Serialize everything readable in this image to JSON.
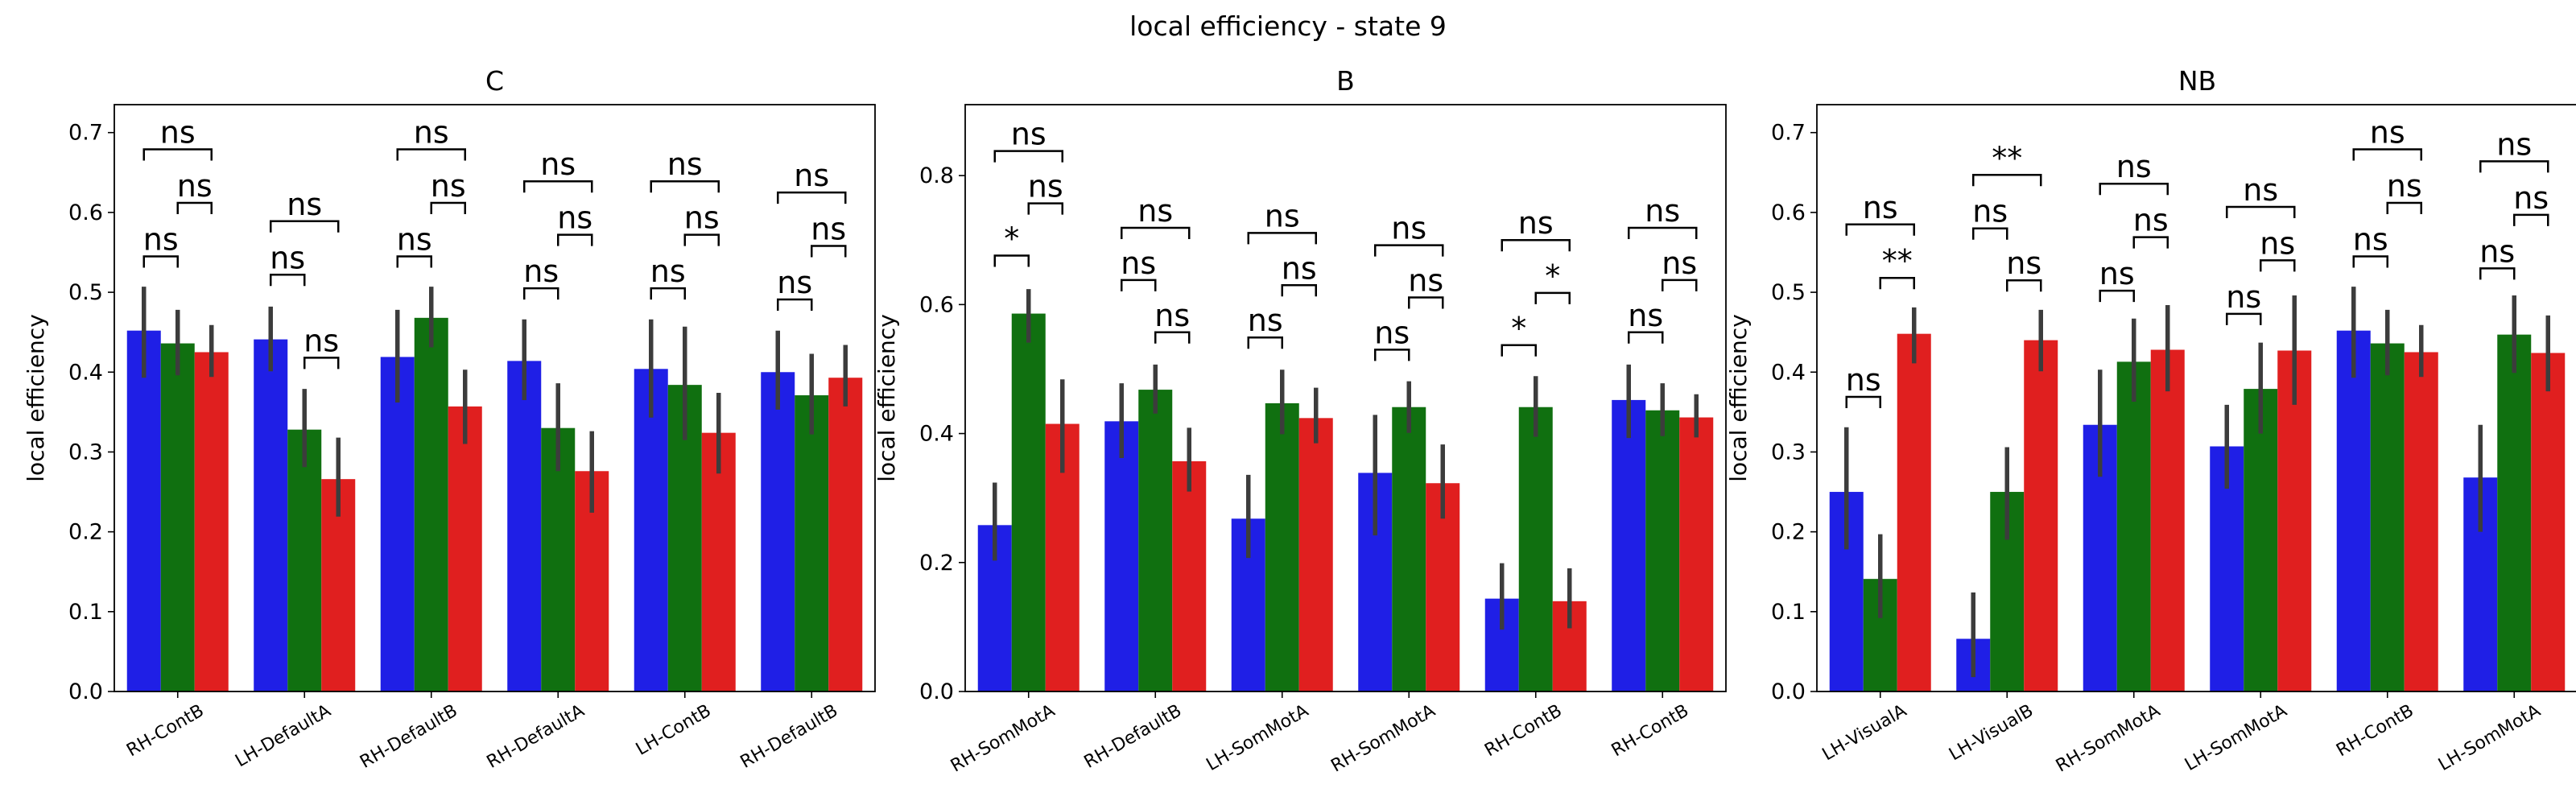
{
  "figure_title": "local efficiency - state 9",
  "colors": {
    "series1": "#1f1fe6",
    "series2": "#107010",
    "series3": "#e01f1f",
    "errorbar": "#3c3c3c"
  },
  "chart_data": [
    {
      "type": "bar",
      "title": "C",
      "ylabel": "local efficiency",
      "xlabel": "",
      "ylim": [
        0,
        0.735
      ],
      "yticks": [
        "0.0",
        "0.1",
        "0.2",
        "0.3",
        "0.4",
        "0.5",
        "0.6",
        "0.7"
      ],
      "categories": [
        "RH-ContB",
        "LH-DefaultA",
        "RH-DefaultB",
        "RH-DefaultA",
        "LH-ContB",
        "RH-DefaultB"
      ],
      "series": [
        {
          "values": [
            0.452,
            0.441,
            0.419,
            0.414,
            0.404,
            0.4
          ],
          "err_low": [
            0.393,
            0.401,
            0.362,
            0.365,
            0.343,
            0.353
          ],
          "err_high": [
            0.507,
            0.482,
            0.478,
            0.466,
            0.466,
            0.452
          ]
        },
        {
          "values": [
            0.436,
            0.328,
            0.468,
            0.33,
            0.384,
            0.371
          ],
          "err_low": [
            0.396,
            0.281,
            0.431,
            0.276,
            0.315,
            0.322
          ],
          "err_high": [
            0.478,
            0.379,
            0.507,
            0.386,
            0.457,
            0.423
          ]
        },
        {
          "values": [
            0.425,
            0.266,
            0.357,
            0.276,
            0.324,
            0.393
          ],
          "err_low": [
            0.394,
            0.219,
            0.31,
            0.224,
            0.273,
            0.357
          ],
          "err_high": [
            0.459,
            0.318,
            0.403,
            0.326,
            0.374,
            0.434
          ]
        }
      ],
      "annotations": [
        {
          "cat": 0,
          "from": 0,
          "to": 1,
          "y": 0.545,
          "label": "ns"
        },
        {
          "cat": 0,
          "from": 1,
          "to": 2,
          "y": 0.612,
          "label": "ns"
        },
        {
          "cat": 0,
          "from": 0,
          "to": 2,
          "y": 0.679,
          "label": "ns"
        },
        {
          "cat": 1,
          "from": 0,
          "to": 1,
          "y": 0.522,
          "label": "ns"
        },
        {
          "cat": 1,
          "from": 1,
          "to": 2,
          "y": 0.418,
          "label": "ns"
        },
        {
          "cat": 1,
          "from": 0,
          "to": 2,
          "y": 0.589,
          "label": "ns"
        },
        {
          "cat": 2,
          "from": 0,
          "to": 1,
          "y": 0.545,
          "label": "ns"
        },
        {
          "cat": 2,
          "from": 1,
          "to": 2,
          "y": 0.612,
          "label": "ns"
        },
        {
          "cat": 2,
          "from": 0,
          "to": 2,
          "y": 0.679,
          "label": "ns"
        },
        {
          "cat": 3,
          "from": 0,
          "to": 1,
          "y": 0.505,
          "label": "ns"
        },
        {
          "cat": 3,
          "from": 1,
          "to": 2,
          "y": 0.572,
          "label": "ns"
        },
        {
          "cat": 3,
          "from": 0,
          "to": 2,
          "y": 0.639,
          "label": "ns"
        },
        {
          "cat": 4,
          "from": 0,
          "to": 1,
          "y": 0.505,
          "label": "ns"
        },
        {
          "cat": 4,
          "from": 1,
          "to": 2,
          "y": 0.572,
          "label": "ns"
        },
        {
          "cat": 4,
          "from": 0,
          "to": 2,
          "y": 0.639,
          "label": "ns"
        },
        {
          "cat": 5,
          "from": 0,
          "to": 1,
          "y": 0.491,
          "label": "ns"
        },
        {
          "cat": 5,
          "from": 1,
          "to": 2,
          "y": 0.558,
          "label": "ns"
        },
        {
          "cat": 5,
          "from": 0,
          "to": 2,
          "y": 0.625,
          "label": "ns"
        }
      ]
    },
    {
      "type": "bar",
      "title": "B",
      "ylabel": "local efficiency",
      "xlabel": "",
      "ylim": [
        0,
        0.91
      ],
      "yticks": [
        "0.0",
        "0.2",
        "0.4",
        "0.6",
        "0.8"
      ],
      "categories": [
        "RH-SomMotA",
        "RH-DefaultB",
        "LH-SomMotA",
        "RH-SomMotA",
        "RH-ContB",
        "RH-ContB"
      ],
      "series": [
        {
          "values": [
            0.258,
            0.419,
            0.268,
            0.339,
            0.144,
            0.452
          ],
          "err_low": [
            0.203,
            0.362,
            0.207,
            0.242,
            0.096,
            0.393
          ],
          "err_high": [
            0.324,
            0.478,
            0.336,
            0.429,
            0.199,
            0.507
          ]
        },
        {
          "values": [
            0.586,
            0.468,
            0.447,
            0.441,
            0.441,
            0.436
          ],
          "err_low": [
            0.541,
            0.431,
            0.399,
            0.401,
            0.395,
            0.396
          ],
          "err_high": [
            0.624,
            0.507,
            0.499,
            0.481,
            0.489,
            0.478
          ]
        },
        {
          "values": [
            0.415,
            0.357,
            0.424,
            0.323,
            0.14,
            0.425
          ],
          "err_low": [
            0.339,
            0.31,
            0.385,
            0.268,
            0.098,
            0.394
          ],
          "err_high": [
            0.484,
            0.409,
            0.471,
            0.383,
            0.191,
            0.461
          ]
        }
      ],
      "annotations": [
        {
          "cat": 0,
          "from": 0,
          "to": 1,
          "y": 0.676,
          "label": "*"
        },
        {
          "cat": 0,
          "from": 1,
          "to": 2,
          "y": 0.757,
          "label": "ns"
        },
        {
          "cat": 0,
          "from": 0,
          "to": 2,
          "y": 0.838,
          "label": "ns"
        },
        {
          "cat": 1,
          "from": 0,
          "to": 1,
          "y": 0.638,
          "label": "ns"
        },
        {
          "cat": 1,
          "from": 1,
          "to": 2,
          "y": 0.557,
          "label": "ns"
        },
        {
          "cat": 1,
          "from": 0,
          "to": 2,
          "y": 0.719,
          "label": "ns"
        },
        {
          "cat": 2,
          "from": 0,
          "to": 1,
          "y": 0.549,
          "label": "ns"
        },
        {
          "cat": 2,
          "from": 1,
          "to": 2,
          "y": 0.63,
          "label": "ns"
        },
        {
          "cat": 2,
          "from": 0,
          "to": 2,
          "y": 0.711,
          "label": "ns"
        },
        {
          "cat": 3,
          "from": 0,
          "to": 1,
          "y": 0.53,
          "label": "ns"
        },
        {
          "cat": 3,
          "from": 1,
          "to": 2,
          "y": 0.611,
          "label": "ns"
        },
        {
          "cat": 3,
          "from": 0,
          "to": 2,
          "y": 0.692,
          "label": "ns"
        },
        {
          "cat": 4,
          "from": 0,
          "to": 1,
          "y": 0.537,
          "label": "*"
        },
        {
          "cat": 4,
          "from": 1,
          "to": 2,
          "y": 0.618,
          "label": "*"
        },
        {
          "cat": 4,
          "from": 0,
          "to": 2,
          "y": 0.7,
          "label": "ns"
        },
        {
          "cat": 5,
          "from": 0,
          "to": 1,
          "y": 0.557,
          "label": "ns"
        },
        {
          "cat": 5,
          "from": 1,
          "to": 2,
          "y": 0.638,
          "label": "ns"
        },
        {
          "cat": 5,
          "from": 0,
          "to": 2,
          "y": 0.719,
          "label": "ns"
        }
      ]
    },
    {
      "type": "bar",
      "title": "NB",
      "ylabel": "local efficiency",
      "xlabel": "",
      "ylim": [
        0,
        0.735
      ],
      "yticks": [
        "0.0",
        "0.1",
        "0.2",
        "0.3",
        "0.4",
        "0.5",
        "0.6",
        "0.7"
      ],
      "categories": [
        "LH-VisualA",
        "LH-VisualB",
        "RH-SomMotA",
        "LH-SomMotA",
        "RH-ContB",
        "LH-SomMotA"
      ],
      "series": [
        {
          "values": [
            0.25,
            0.066,
            0.334,
            0.307,
            0.452,
            0.268
          ],
          "err_low": [
            0.178,
            0.018,
            0.269,
            0.254,
            0.393,
            0.2
          ],
          "err_high": [
            0.331,
            0.124,
            0.403,
            0.359,
            0.507,
            0.334
          ]
        },
        {
          "values": [
            0.141,
            0.25,
            0.413,
            0.379,
            0.436,
            0.447
          ],
          "err_low": [
            0.092,
            0.19,
            0.363,
            0.323,
            0.396,
            0.399
          ],
          "err_high": [
            0.197,
            0.306,
            0.467,
            0.437,
            0.478,
            0.496
          ]
        },
        {
          "values": [
            0.448,
            0.44,
            0.428,
            0.427,
            0.425,
            0.424
          ],
          "err_low": [
            0.411,
            0.401,
            0.376,
            0.359,
            0.394,
            0.376
          ],
          "err_high": [
            0.481,
            0.478,
            0.484,
            0.496,
            0.459,
            0.471
          ]
        }
      ],
      "annotations": [
        {
          "cat": 0,
          "from": 0,
          "to": 1,
          "y": 0.369,
          "label": "ns"
        },
        {
          "cat": 0,
          "from": 1,
          "to": 2,
          "y": 0.518,
          "label": "**"
        },
        {
          "cat": 0,
          "from": 0,
          "to": 2,
          "y": 0.585,
          "label": "ns"
        },
        {
          "cat": 1,
          "from": 0,
          "to": 1,
          "y": 0.58,
          "label": "ns"
        },
        {
          "cat": 1,
          "from": 1,
          "to": 2,
          "y": 0.515,
          "label": "ns"
        },
        {
          "cat": 1,
          "from": 0,
          "to": 2,
          "y": 0.647,
          "label": "**"
        },
        {
          "cat": 2,
          "from": 0,
          "to": 1,
          "y": 0.502,
          "label": "ns"
        },
        {
          "cat": 2,
          "from": 1,
          "to": 2,
          "y": 0.569,
          "label": "ns"
        },
        {
          "cat": 2,
          "from": 0,
          "to": 2,
          "y": 0.636,
          "label": "ns"
        },
        {
          "cat": 3,
          "from": 0,
          "to": 1,
          "y": 0.473,
          "label": "ns"
        },
        {
          "cat": 3,
          "from": 1,
          "to": 2,
          "y": 0.54,
          "label": "ns"
        },
        {
          "cat": 3,
          "from": 0,
          "to": 2,
          "y": 0.607,
          "label": "ns"
        },
        {
          "cat": 4,
          "from": 0,
          "to": 1,
          "y": 0.545,
          "label": "ns"
        },
        {
          "cat": 4,
          "from": 1,
          "to": 2,
          "y": 0.612,
          "label": "ns"
        },
        {
          "cat": 4,
          "from": 0,
          "to": 2,
          "y": 0.679,
          "label": "ns"
        },
        {
          "cat": 5,
          "from": 0,
          "to": 1,
          "y": 0.53,
          "label": "ns"
        },
        {
          "cat": 5,
          "from": 1,
          "to": 2,
          "y": 0.597,
          "label": "ns"
        },
        {
          "cat": 5,
          "from": 0,
          "to": 2,
          "y": 0.664,
          "label": "ns"
        }
      ]
    }
  ]
}
